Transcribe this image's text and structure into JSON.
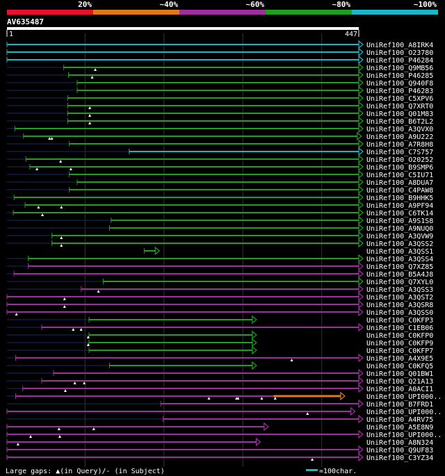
{
  "chart_data": {
    "type": "alignment-hits",
    "query": {
      "id": "AV635487",
      "start": 1,
      "end": 447
    },
    "identity_legend": [
      {
        "label": "20%",
        "color": "#e8102c"
      },
      {
        "label": "~40%",
        "color": "#e07818"
      },
      {
        "label": "~60%",
        "color": "#a02ea0"
      },
      {
        "label": "~80%",
        "color": "#1ea01e"
      },
      {
        "label": "~100%",
        "color": "#19b8c8"
      }
    ],
    "scale_unit": 100,
    "footer": {
      "gaps_text": "Large gaps: ▲(in Query)/- (in Subject)",
      "scale_text": "=100char."
    },
    "hits": [
      {
        "name": "UniRef100_A8IRK4",
        "color": "#19b8c8",
        "pre": [
          1,
          1
        ],
        "seg": [
          1,
          447
        ],
        "gaps": []
      },
      {
        "name": "UniRef100_O23780",
        "color": "#19b8c8",
        "pre": [
          1,
          1
        ],
        "seg": [
          1,
          447
        ],
        "gaps": []
      },
      {
        "name": "UniRef100_P46284",
        "color": "#19b8c8",
        "pre": [
          1,
          1
        ],
        "seg": [
          1,
          447
        ],
        "gaps": []
      },
      {
        "name": "UniRef100_Q9MB56",
        "color": "#1ea01e",
        "pre": [
          1,
          73
        ],
        "seg": [
          73,
          447
        ],
        "gaps": [
          113
        ]
      },
      {
        "name": "UniRef100_P46285",
        "color": "#1ea01e",
        "pre": [
          1,
          79
        ],
        "seg": [
          79,
          447
        ],
        "gaps": [
          109
        ]
      },
      {
        "name": "UniRef100_Q940F8",
        "color": "#1ea01e",
        "pre": [
          1,
          90
        ],
        "seg": [
          90,
          447
        ],
        "gaps": []
      },
      {
        "name": "UniRef100_P46283",
        "color": "#1ea01e",
        "pre": [
          1,
          90
        ],
        "seg": [
          90,
          447
        ],
        "gaps": []
      },
      {
        "name": "UniRef100_C5XPV6",
        "color": "#1ea01e",
        "pre": [
          1,
          78
        ],
        "seg": [
          78,
          447
        ],
        "gaps": []
      },
      {
        "name": "UniRef100_Q7XRT0",
        "color": "#1ea01e",
        "pre": [
          1,
          78
        ],
        "seg": [
          78,
          447
        ],
        "gaps": [
          106
        ]
      },
      {
        "name": "UniRef100_Q01M83",
        "color": "#1ea01e",
        "pre": [
          1,
          78
        ],
        "seg": [
          78,
          447
        ],
        "gaps": [
          106
        ]
      },
      {
        "name": "UniRef100_B6T2L2",
        "color": "#1ea01e",
        "pre": [
          1,
          78
        ],
        "seg": [
          78,
          447
        ],
        "gaps": [
          106
        ]
      },
      {
        "name": "UniRef100_A3QVX0",
        "color": "#1ea01e",
        "pre": [
          1,
          11
        ],
        "seg": [
          11,
          447
        ],
        "gaps": []
      },
      {
        "name": "UniRef100_A9U222",
        "color": "#1ea01e",
        "pre": [
          1,
          22
        ],
        "seg": [
          22,
          445
        ],
        "gaps": [
          55,
          58
        ]
      },
      {
        "name": "UniRef100_A7R8H8",
        "color": "#1ea01e",
        "pre": [
          1,
          80
        ],
        "seg": [
          80,
          447
        ],
        "gaps": []
      },
      {
        "name": "UniRef100_C7S757",
        "color": "#19b8c8",
        "pre": [
          1,
          156
        ],
        "seg": [
          156,
          447
        ],
        "gaps": []
      },
      {
        "name": "UniRef100_O20252",
        "color": "#1ea01e",
        "pre": [
          1,
          25
        ],
        "seg": [
          25,
          447
        ],
        "gaps": [
          69
        ]
      },
      {
        "name": "UniRef100_B9SMP6",
        "color": "#1ea01e",
        "pre": [
          1,
          30
        ],
        "seg": [
          30,
          447
        ],
        "gaps": [
          39,
          82
        ]
      },
      {
        "name": "UniRef100_C5IU71",
        "color": "#1ea01e",
        "pre": [
          1,
          80
        ],
        "seg": [
          80,
          447
        ],
        "gaps": []
      },
      {
        "name": "UniRef100_A8DUA7",
        "color": "#1ea01e",
        "pre": [
          1,
          90
        ],
        "seg": [
          90,
          447
        ],
        "gaps": []
      },
      {
        "name": "UniRef100_C4PAW8",
        "color": "#1ea01e",
        "pre": [
          1,
          80
        ],
        "seg": [
          80,
          447
        ],
        "gaps": []
      },
      {
        "name": "UniRef100_B9HHK5",
        "color": "#1ea01e",
        "pre": [
          1,
          10
        ],
        "seg": [
          10,
          447
        ],
        "gaps": []
      },
      {
        "name": "UniRef100_A9PF94",
        "color": "#1ea01e",
        "pre": [
          1,
          24
        ],
        "seg": [
          24,
          447
        ],
        "gaps": [
          41,
          70
        ]
      },
      {
        "name": "UniRef100_C6TK14",
        "color": "#1ea01e",
        "pre": [
          1,
          9
        ],
        "seg": [
          9,
          447
        ],
        "gaps": [
          46
        ]
      },
      {
        "name": "UniRef100_A9S1S8",
        "color": "#1ea01e",
        "pre": [
          1,
          133
        ],
        "seg": [
          133,
          447
        ],
        "gaps": []
      },
      {
        "name": "UniRef100_A9NUQ0",
        "color": "#1ea01e",
        "pre": [
          1,
          131
        ],
        "seg": [
          131,
          447
        ],
        "gaps": []
      },
      {
        "name": "UniRef100_A3QVW9",
        "color": "#1ea01e",
        "pre": [
          1,
          58
        ],
        "seg": [
          58,
          447
        ],
        "gaps": [
          70
        ]
      },
      {
        "name": "UniRef100_A3QSS2",
        "color": "#1ea01e",
        "pre": [
          1,
          58
        ],
        "seg": [
          58,
          447
        ],
        "gaps": [
          70
        ]
      },
      {
        "name": "UniRef100_A3QSS1",
        "color": "#1ea01e",
        "pre": [
          175,
          189
        ],
        "seg": [
          175,
          189
        ],
        "gaps": []
      },
      {
        "name": "UniRef100_A3QSS4",
        "color": "#1ea01e",
        "pre": [
          1,
          28
        ],
        "seg": [
          28,
          447
        ],
        "gaps": []
      },
      {
        "name": "UniRef100_Q7XZ85",
        "color": "#a02ea0",
        "pre": [
          1,
          28
        ],
        "seg": [
          28,
          447
        ],
        "gaps": []
      },
      {
        "name": "UniRef100_B5A4J8",
        "color": "#a02ea0",
        "pre": [
          1,
          10
        ],
        "seg": [
          10,
          447
        ],
        "gaps": []
      },
      {
        "name": "UniRef100_Q7XYL0",
        "color": "#1ea01e",
        "pre": [
          1,
          123
        ],
        "seg": [
          123,
          447
        ],
        "gaps": []
      },
      {
        "name": "UniRef100_A3QSS3",
        "color": "#a02ea0",
        "pre": [
          1,
          95
        ],
        "seg": [
          95,
          447
        ],
        "gaps": [
          117
        ]
      },
      {
        "name": "UniRef100_A3QST2",
        "color": "#a02ea0",
        "pre": [
          1,
          1
        ],
        "seg": [
          1,
          447
        ],
        "gaps": [
          74
        ]
      },
      {
        "name": "UniRef100_A3QSR8",
        "color": "#a02ea0",
        "pre": [
          1,
          1
        ],
        "seg": [
          1,
          447
        ],
        "gaps": [
          74
        ]
      },
      {
        "name": "UniRef100_A3QSS0",
        "color": "#a02ea0",
        "pre": [
          1,
          1
        ],
        "seg": [
          1,
          447
        ],
        "gaps": [
          13
        ]
      },
      {
        "name": "UniRef100_C0KFP3",
        "color": "#1ea01e",
        "pre": [
          1,
          105
        ],
        "seg": [
          105,
          312
        ],
        "gaps": []
      },
      {
        "name": "UniRef100_C1EB06",
        "color": "#a02ea0",
        "pre": [
          1,
          45
        ],
        "seg": [
          45,
          447
        ],
        "gaps": [
          85,
          95
        ]
      },
      {
        "name": "UniRef100_C0KFP0",
        "color": "#1ea01e",
        "pre": [
          1,
          105
        ],
        "seg": [
          105,
          312
        ],
        "gaps": [
          104
        ]
      },
      {
        "name": "UniRef100_C0KFP9",
        "color": "#1ea01e",
        "pre": [
          1,
          105
        ],
        "seg": [
          105,
          312
        ],
        "gaps": [
          104
        ]
      },
      {
        "name": "UniRef100_C0KFP7",
        "color": "#1ea01e",
        "pre": [
          1,
          105
        ],
        "seg": [
          105,
          312
        ],
        "gaps": []
      },
      {
        "name": "UniRef100_A4X9E5",
        "color": "#a02ea0",
        "pre": [
          1,
          12
        ],
        "seg": [
          12,
          447
        ],
        "gaps": [
          362
        ]
      },
      {
        "name": "UniRef100_C0KFQ5",
        "color": "#1ea01e",
        "pre": [
          1,
          131
        ],
        "seg": [
          131,
          312
        ],
        "gaps": []
      },
      {
        "name": "UniRef100_Q01BW1",
        "color": "#a02ea0",
        "pre": [
          1,
          60
        ],
        "seg": [
          60,
          447
        ],
        "gaps": []
      },
      {
        "name": "UniRef100_Q21A13",
        "color": "#a02ea0",
        "pre": [
          1,
          45
        ],
        "seg": [
          45,
          447
        ],
        "gaps": [
          87,
          99
        ]
      },
      {
        "name": "UniRef100_A0ACI1",
        "color": "#a02ea0",
        "pre": [
          1,
          21
        ],
        "seg": [
          21,
          447
        ],
        "gaps": [
          75
        ]
      },
      {
        "name": "UniRef100_UPI000..",
        "color": "#a02ea0",
        "pre": [
          1,
          12
        ],
        "seg": [
          12,
          339
        ],
        "gaps": [
          257,
          292,
          294,
          324,
          341
        ],
        "ext": {
          "color": "#e07818",
          "range": [
            339,
            424
          ]
        }
      },
      {
        "name": "UniRef100_B7FRD1",
        "color": "#a02ea0",
        "pre": [
          1,
          196
        ],
        "seg": [
          196,
          447
        ],
        "gaps": []
      },
      {
        "name": "UniRef100_UPI000..",
        "color": "#a02ea0",
        "pre": [
          1,
          1
        ],
        "seg": [
          1,
          437
        ],
        "gaps": [
          382
        ]
      },
      {
        "name": "UniRef100_A4RV75",
        "color": "#a02ea0",
        "pre": [
          1,
          199
        ],
        "seg": [
          199,
          447
        ],
        "gaps": []
      },
      {
        "name": "UniRef100_A5E8N9",
        "color": "#a02ea0",
        "pre": [
          1,
          1
        ],
        "seg": [
          1,
          327
        ],
        "gaps": [
          67,
          111
        ]
      },
      {
        "name": "UniRef100_UPI000..",
        "color": "#a02ea0",
        "pre": [
          1,
          1
        ],
        "seg": [
          1,
          447
        ],
        "gaps": [
          31,
          68
        ]
      },
      {
        "name": "UniRef100_A8N324",
        "color": "#a02ea0",
        "pre": [
          1,
          1
        ],
        "seg": [
          1,
          317
        ],
        "gaps": [
          15
        ]
      },
      {
        "name": "UniRef100_Q9UF83",
        "color": "#a02ea0",
        "pre": [
          1,
          1
        ],
        "seg": [
          1,
          447
        ],
        "gaps": []
      },
      {
        "name": "UniRef100_C3YZ34",
        "color": "#a02ea0",
        "pre": [
          1,
          1
        ],
        "seg": [
          1,
          447
        ],
        "gaps": [
          388
        ]
      }
    ]
  }
}
